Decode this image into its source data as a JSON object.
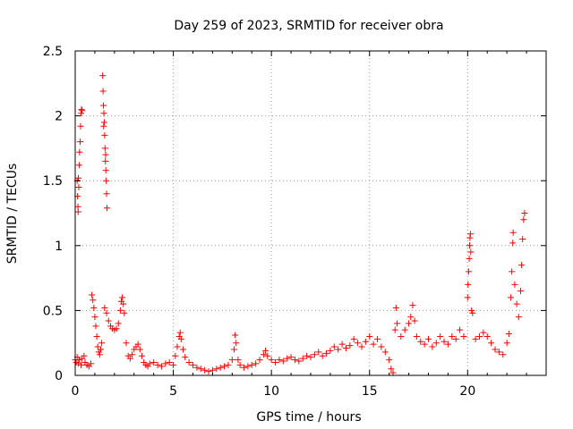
{
  "chart_data": {
    "type": "scatter",
    "title": "Day 259 of 2023, SRMTID for receiver obra",
    "xlabel": "GPS time / hours",
    "ylabel": "SRMTID / TECUs",
    "xlim": [
      0,
      24
    ],
    "ylim": [
      0,
      2.5
    ],
    "xticks": [
      0,
      5,
      10,
      15,
      20
    ],
    "xtick_labels": [
      "0",
      "5",
      "10",
      "15",
      "20"
    ],
    "yticks": [
      0,
      0.5,
      1,
      1.5,
      2,
      2.5
    ],
    "ytick_labels": [
      "0",
      "0.5",
      "1",
      "1.5",
      "2",
      "2.5"
    ],
    "grid": true,
    "marker": "+",
    "color": "#ff0000",
    "series": [
      {
        "name": "SRMTID",
        "points": [
          [
            0.0,
            0.12
          ],
          [
            0.05,
            0.1
          ],
          [
            0.1,
            0.14
          ],
          [
            0.15,
            0.09
          ],
          [
            0.2,
            0.12
          ],
          [
            0.3,
            0.08
          ],
          [
            0.35,
            0.13
          ],
          [
            0.45,
            0.15
          ],
          [
            0.5,
            0.1
          ],
          [
            0.6,
            0.08
          ],
          [
            0.7,
            0.07
          ],
          [
            0.8,
            0.09
          ],
          [
            0.1,
            1.5
          ],
          [
            0.12,
            1.38
          ],
          [
            0.14,
            1.3
          ],
          [
            0.15,
            1.26
          ],
          [
            0.16,
            1.52
          ],
          [
            0.18,
            1.45
          ],
          [
            0.2,
            1.62
          ],
          [
            0.22,
            1.72
          ],
          [
            0.25,
            1.8
          ],
          [
            0.27,
            1.92
          ],
          [
            0.3,
            2.02
          ],
          [
            0.32,
            2.05
          ],
          [
            0.35,
            2.04
          ],
          [
            0.85,
            0.62
          ],
          [
            0.9,
            0.58
          ],
          [
            0.95,
            0.52
          ],
          [
            1.0,
            0.45
          ],
          [
            1.05,
            0.38
          ],
          [
            1.1,
            0.3
          ],
          [
            1.15,
            0.22
          ],
          [
            1.2,
            0.18
          ],
          [
            1.25,
            0.16
          ],
          [
            1.3,
            0.2
          ],
          [
            1.35,
            0.25
          ],
          [
            1.4,
            2.31
          ],
          [
            1.42,
            2.19
          ],
          [
            1.44,
            2.08
          ],
          [
            1.46,
            2.02
          ],
          [
            1.48,
            1.95
          ],
          [
            1.5,
            1.85
          ],
          [
            1.52,
            1.75
          ],
          [
            1.54,
            1.65
          ],
          [
            1.56,
            1.58
          ],
          [
            1.58,
            1.5
          ],
          [
            1.6,
            1.4
          ],
          [
            1.62,
            1.29
          ],
          [
            1.45,
            1.92
          ],
          [
            1.55,
            1.7
          ],
          [
            1.5,
            0.52
          ],
          [
            1.6,
            0.48
          ],
          [
            1.7,
            0.42
          ],
          [
            1.8,
            0.38
          ],
          [
            1.9,
            0.36
          ],
          [
            2.0,
            0.35
          ],
          [
            2.1,
            0.36
          ],
          [
            2.2,
            0.4
          ],
          [
            2.3,
            0.5
          ],
          [
            2.35,
            0.57
          ],
          [
            2.4,
            0.6
          ],
          [
            2.45,
            0.55
          ],
          [
            2.5,
            0.48
          ],
          [
            2.6,
            0.25
          ],
          [
            2.7,
            0.15
          ],
          [
            2.8,
            0.13
          ],
          [
            2.9,
            0.16
          ],
          [
            3.0,
            0.2
          ],
          [
            3.1,
            0.22
          ],
          [
            3.2,
            0.24
          ],
          [
            3.3,
            0.2
          ],
          [
            3.4,
            0.15
          ],
          [
            3.5,
            0.1
          ],
          [
            3.6,
            0.08
          ],
          [
            3.7,
            0.07
          ],
          [
            3.8,
            0.09
          ],
          [
            4.0,
            0.1
          ],
          [
            4.2,
            0.08
          ],
          [
            4.4,
            0.07
          ],
          [
            4.6,
            0.09
          ],
          [
            4.8,
            0.1
          ],
          [
            5.0,
            0.08
          ],
          [
            5.1,
            0.15
          ],
          [
            5.2,
            0.22
          ],
          [
            5.3,
            0.3
          ],
          [
            5.35,
            0.33
          ],
          [
            5.4,
            0.28
          ],
          [
            5.5,
            0.2
          ],
          [
            5.6,
            0.14
          ],
          [
            5.8,
            0.1
          ],
          [
            6.0,
            0.08
          ],
          [
            6.2,
            0.06
          ],
          [
            6.4,
            0.05
          ],
          [
            6.6,
            0.04
          ],
          [
            6.8,
            0.03
          ],
          [
            7.0,
            0.04
          ],
          [
            7.2,
            0.05
          ],
          [
            7.4,
            0.06
          ],
          [
            7.6,
            0.07
          ],
          [
            7.8,
            0.08
          ],
          [
            8.0,
            0.12
          ],
          [
            8.1,
            0.2
          ],
          [
            8.15,
            0.31
          ],
          [
            8.2,
            0.25
          ],
          [
            8.3,
            0.12
          ],
          [
            8.4,
            0.08
          ],
          [
            8.6,
            0.06
          ],
          [
            8.8,
            0.07
          ],
          [
            9.0,
            0.08
          ],
          [
            9.2,
            0.09
          ],
          [
            9.4,
            0.12
          ],
          [
            9.6,
            0.16
          ],
          [
            9.7,
            0.19
          ],
          [
            9.8,
            0.15
          ],
          [
            10.0,
            0.12
          ],
          [
            10.2,
            0.1
          ],
          [
            10.4,
            0.12
          ],
          [
            10.6,
            0.11
          ],
          [
            10.8,
            0.13
          ],
          [
            11.0,
            0.14
          ],
          [
            11.2,
            0.12
          ],
          [
            11.4,
            0.11
          ],
          [
            11.6,
            0.13
          ],
          [
            11.8,
            0.15
          ],
          [
            12.0,
            0.14
          ],
          [
            12.2,
            0.16
          ],
          [
            12.4,
            0.18
          ],
          [
            12.6,
            0.15
          ],
          [
            12.8,
            0.17
          ],
          [
            13.0,
            0.19
          ],
          [
            13.2,
            0.22
          ],
          [
            13.4,
            0.2
          ],
          [
            13.6,
            0.24
          ],
          [
            13.8,
            0.21
          ],
          [
            14.0,
            0.23
          ],
          [
            14.2,
            0.28
          ],
          [
            14.4,
            0.25
          ],
          [
            14.6,
            0.22
          ],
          [
            14.8,
            0.26
          ],
          [
            15.0,
            0.3
          ],
          [
            15.2,
            0.24
          ],
          [
            15.4,
            0.28
          ],
          [
            15.6,
            0.22
          ],
          [
            15.8,
            0.18
          ],
          [
            16.0,
            0.12
          ],
          [
            16.1,
            0.05
          ],
          [
            16.2,
            0.02
          ],
          [
            16.3,
            0.35
          ],
          [
            16.35,
            0.52
          ],
          [
            16.4,
            0.4
          ],
          [
            16.6,
            0.3
          ],
          [
            16.8,
            0.35
          ],
          [
            17.0,
            0.4
          ],
          [
            17.1,
            0.45
          ],
          [
            17.2,
            0.54
          ],
          [
            17.3,
            0.42
          ],
          [
            17.4,
            0.3
          ],
          [
            17.6,
            0.26
          ],
          [
            17.8,
            0.24
          ],
          [
            18.0,
            0.28
          ],
          [
            18.2,
            0.22
          ],
          [
            18.4,
            0.25
          ],
          [
            18.6,
            0.3
          ],
          [
            18.8,
            0.26
          ],
          [
            19.0,
            0.24
          ],
          [
            19.2,
            0.3
          ],
          [
            19.4,
            0.28
          ],
          [
            19.6,
            0.35
          ],
          [
            19.8,
            0.3
          ],
          [
            20.0,
            0.6
          ],
          [
            20.02,
            0.7
          ],
          [
            20.05,
            0.8
          ],
          [
            20.08,
            0.9
          ],
          [
            20.1,
            1.0
          ],
          [
            20.12,
            1.06
          ],
          [
            20.14,
            1.09
          ],
          [
            20.16,
            0.95
          ],
          [
            20.2,
            0.5
          ],
          [
            20.25,
            0.48
          ],
          [
            20.4,
            0.28
          ],
          [
            20.6,
            0.3
          ],
          [
            20.8,
            0.33
          ],
          [
            21.0,
            0.3
          ],
          [
            21.2,
            0.25
          ],
          [
            21.4,
            0.2
          ],
          [
            21.6,
            0.18
          ],
          [
            21.8,
            0.16
          ],
          [
            22.0,
            0.25
          ],
          [
            22.1,
            0.32
          ],
          [
            22.2,
            0.6
          ],
          [
            22.25,
            0.8
          ],
          [
            22.3,
            1.02
          ],
          [
            22.32,
            1.1
          ],
          [
            22.4,
            0.7
          ],
          [
            22.5,
            0.55
          ],
          [
            22.6,
            0.45
          ],
          [
            22.7,
            0.65
          ],
          [
            22.75,
            0.85
          ],
          [
            22.8,
            1.05
          ],
          [
            22.85,
            1.2
          ],
          [
            22.9,
            1.25
          ]
        ]
      }
    ]
  }
}
